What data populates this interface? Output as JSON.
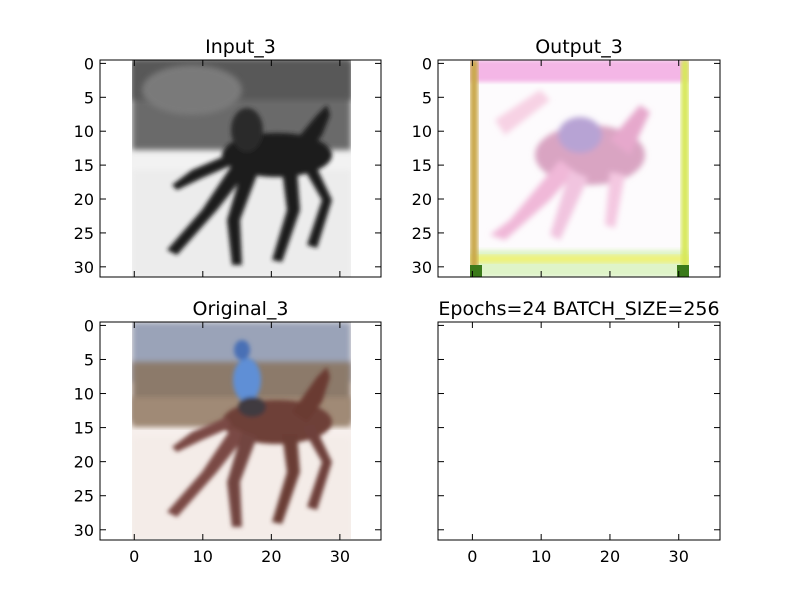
{
  "chart_data": [
    {
      "type": "image",
      "title": "Input_3",
      "image_kind": "grayscale",
      "image_size": [
        32,
        32
      ],
      "xlim": [
        -5,
        36
      ],
      "ylim": [
        31.5,
        -0.5
      ],
      "x_ticks": [],
      "y_ticks": [
        0,
        5,
        10,
        15,
        20,
        25,
        30
      ]
    },
    {
      "type": "image",
      "title": "Output_3",
      "image_kind": "rgb",
      "image_size": [
        32,
        32
      ],
      "xlim": [
        -5,
        36
      ],
      "ylim": [
        31.5,
        -0.5
      ],
      "x_ticks": [],
      "y_ticks": [
        0,
        5,
        10,
        15,
        20,
        25,
        30
      ]
    },
    {
      "type": "image",
      "title": "Original_3",
      "image_kind": "rgb",
      "image_size": [
        32,
        32
      ],
      "xlim": [
        -5,
        36
      ],
      "ylim": [
        31.5,
        -0.5
      ],
      "x_ticks": [
        0,
        10,
        20,
        30
      ],
      "y_ticks": [
        0,
        5,
        10,
        15,
        20,
        25,
        30
      ]
    },
    {
      "type": "image",
      "title": "Epochs=24 BATCH_SIZE=256",
      "image_kind": "empty",
      "xlim": [
        -5,
        36
      ],
      "ylim": [
        31.5,
        -0.5
      ],
      "x_ticks": [
        0,
        10,
        20,
        30
      ],
      "y_ticks": []
    }
  ]
}
